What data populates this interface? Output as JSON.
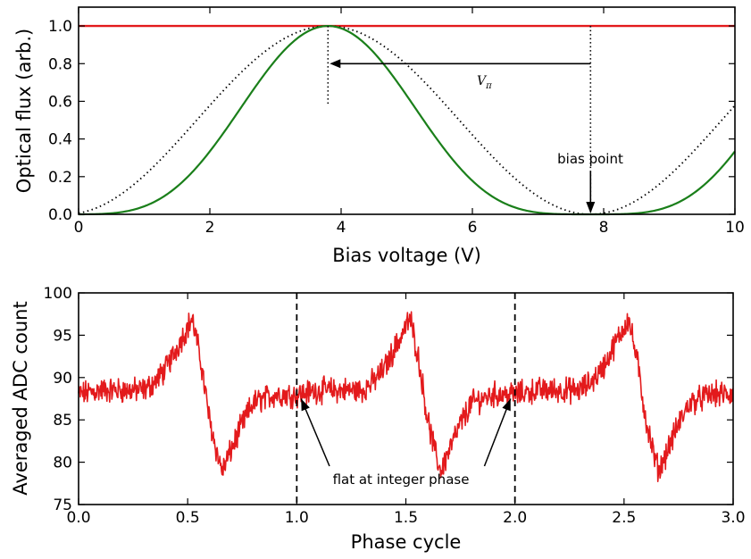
{
  "chart_data": [
    {
      "type": "line",
      "xlabel": "Bias voltage (V)",
      "ylabel": "Optical flux (arb.)",
      "xlim": [
        0,
        10
      ],
      "ylim": [
        0,
        1.1
      ],
      "xticks": [
        0,
        2,
        4,
        6,
        8,
        10
      ],
      "xtick_labels": [
        "0",
        "2",
        "4",
        "6",
        "8",
        "10"
      ],
      "yticks": [
        0,
        0.2,
        0.4,
        0.6,
        0.8,
        1.0
      ],
      "ytick_labels": [
        "0.0",
        "0.2",
        "0.4",
        "0.6",
        "0.8",
        "1.0"
      ],
      "grid": false,
      "series": [
        {
          "style": "red solid",
          "color": "#e31a1c",
          "x": [
            0,
            10
          ],
          "y": [
            1.0,
            1.0
          ]
        },
        {
          "style": "black dotted",
          "color": "#000000",
          "x": [
            0,
            1,
            2,
            3,
            3.8,
            4.5,
            5,
            6,
            7,
            7.8,
            8.5,
            9,
            10
          ],
          "y": [
            0.0,
            0.15,
            0.5,
            0.85,
            1.0,
            0.92,
            0.8,
            0.41,
            0.1,
            0.0,
            0.1,
            0.23,
            0.6
          ]
        },
        {
          "style": "green solid",
          "color": "#1a7f1a",
          "x": [
            0,
            1,
            2,
            3,
            3.8,
            4.5,
            5,
            6,
            7,
            7.8,
            8.5,
            9,
            10
          ],
          "y": [
            0.0,
            0.02,
            0.25,
            0.73,
            1.0,
            0.85,
            0.64,
            0.17,
            0.01,
            0.0,
            0.01,
            0.05,
            0.36
          ]
        }
      ],
      "annotations": {
        "vpi_label_main": "V",
        "vpi_label_sub": "π",
        "bias_point": "bias point"
      },
      "markers": {
        "peak_voltage": 3.8,
        "bias_voltage": 7.8
      }
    },
    {
      "type": "line",
      "xlabel": "Phase cycle",
      "ylabel": "Averaged ADC count",
      "xlim": [
        0,
        3
      ],
      "ylim": [
        75,
        100
      ],
      "xticks": [
        0,
        0.5,
        1,
        1.5,
        2,
        2.5,
        3
      ],
      "xtick_labels": [
        "0.0",
        "0.5",
        "1.0",
        "1.5",
        "2.0",
        "2.5",
        "3.0"
      ],
      "yticks": [
        75,
        80,
        85,
        90,
        95,
        100
      ],
      "ytick_labels": [
        "75",
        "80",
        "85",
        "90",
        "95",
        "100"
      ],
      "grid": false,
      "vlines": [
        1.0,
        2.0
      ],
      "period_profile": {
        "phase": [
          0,
          0.1,
          0.2,
          0.3,
          0.35,
          0.4,
          0.45,
          0.5,
          0.52,
          0.56,
          0.6,
          0.64,
          0.66,
          0.7,
          0.75,
          0.8,
          0.9,
          1.0
        ],
        "value": [
          88.0,
          88.5,
          88.5,
          88.5,
          89.5,
          91.0,
          93.5,
          96.0,
          97.0,
          92.0,
          85.0,
          80.5,
          79.0,
          81.5,
          84.5,
          87.0,
          88.0,
          88.0
        ]
      },
      "noise_amplitude": 1.2,
      "series": [
        {
          "style": "red solid",
          "color": "#e31a1c",
          "x": [
            0,
            0.3,
            0.45,
            0.52,
            0.6,
            0.66,
            0.8,
            1.0,
            1.3,
            1.45,
            1.52,
            1.6,
            1.66,
            1.8,
            2.0,
            2.3,
            2.45,
            2.52,
            2.6,
            2.66,
            2.8,
            3.0
          ],
          "y": [
            88.0,
            88.5,
            93.5,
            97.0,
            85.0,
            79.0,
            87.0,
            88.0,
            88.5,
            93.5,
            97.0,
            85.0,
            79.0,
            87.0,
            88.0,
            88.5,
            93.5,
            97.0,
            85.0,
            79.0,
            87.0,
            88.0
          ]
        }
      ],
      "annotations": {
        "integer_phase": "flat at integer phase"
      }
    }
  ]
}
